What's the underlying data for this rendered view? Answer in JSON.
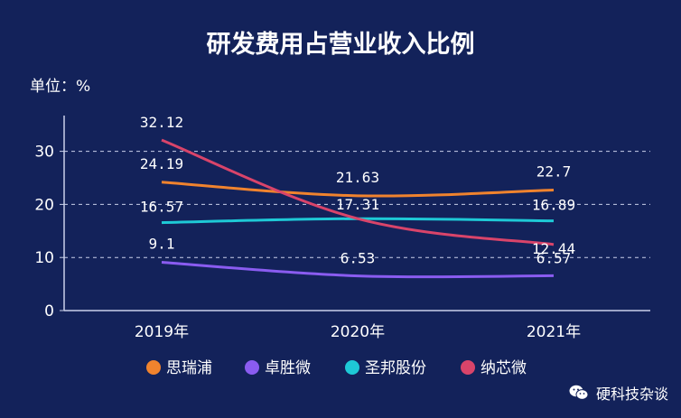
{
  "chart_data": {
    "type": "line",
    "title": "研发费用占营业收入比例",
    "unit_label": "单位：%",
    "categories": [
      "2019年",
      "2020年",
      "2021年"
    ],
    "ylim": [
      0,
      35
    ],
    "yticks": [
      "0",
      "10",
      "20",
      "30"
    ],
    "grid": true,
    "legend_position": "bottom",
    "series": [
      {
        "name": "思瑞浦",
        "color": "#f0832e",
        "values": [
          24.19,
          21.63,
          22.7
        ],
        "labels": [
          "24.19",
          "21.63",
          "22.7"
        ]
      },
      {
        "name": "卓胜微",
        "color": "#8a5cf0",
        "values": [
          9.1,
          6.53,
          6.57
        ],
        "labels": [
          "9.1",
          "6.53",
          "6.57"
        ]
      },
      {
        "name": "圣邦股份",
        "color": "#1ec9d6",
        "values": [
          16.57,
          17.31,
          16.89
        ],
        "labels": [
          "16.57",
          "17.31",
          "16.89"
        ]
      },
      {
        "name": "纳芯微",
        "color": "#d9446a",
        "values": [
          32.12,
          17.31,
          12.44
        ],
        "labels": [
          "32.12",
          "17.31",
          "12.44"
        ]
      }
    ]
  },
  "watermark": {
    "icon": "wechat-icon",
    "text": "硬科技杂谈"
  }
}
